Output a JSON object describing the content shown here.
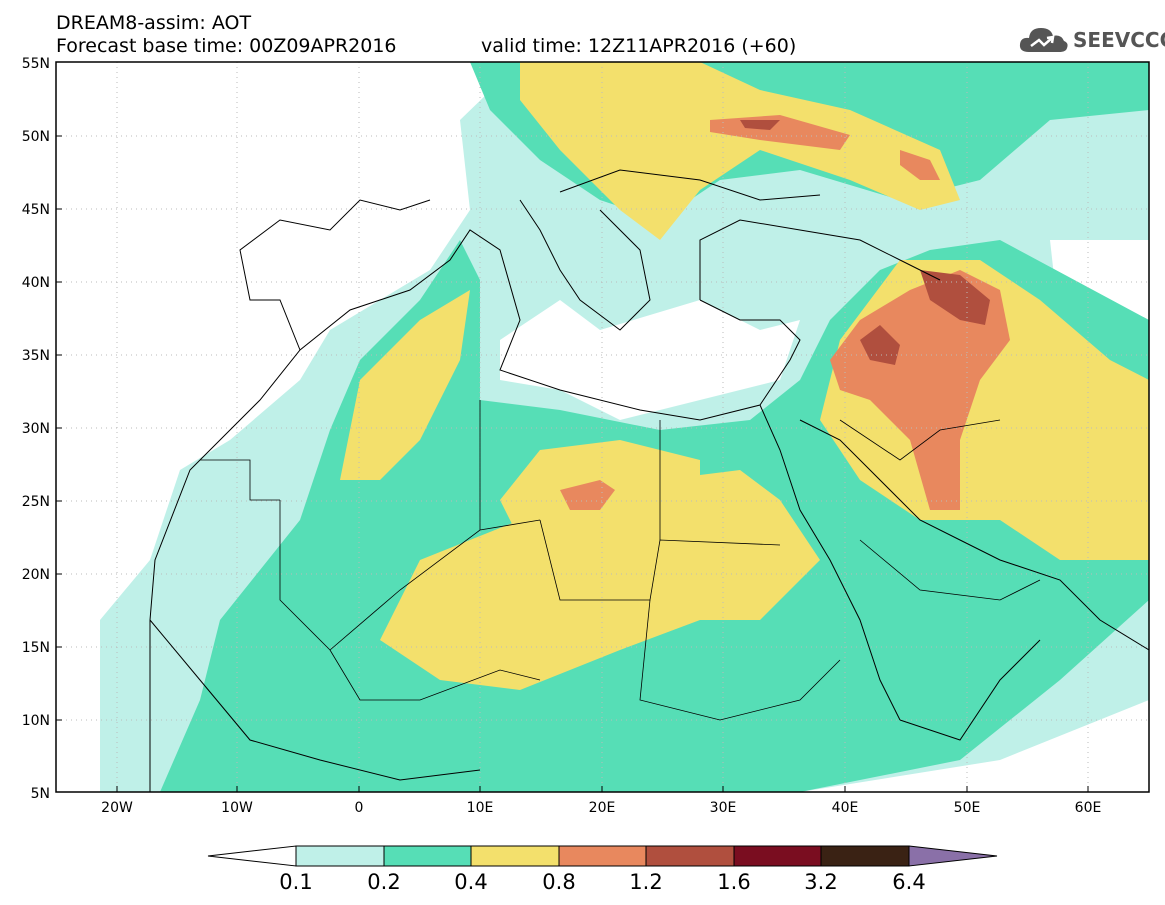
{
  "header": {
    "title": "DREAM8-assim: AOT",
    "base_time": "Forecast base time: 00Z09APR2016",
    "valid_time": "valid time: 12Z11APR2016 (+60)"
  },
  "logo": {
    "text": "SEEVCCC",
    "icon": "cloud-logo-icon"
  },
  "map": {
    "lat_labels": [
      "55N",
      "50N",
      "45N",
      "40N",
      "35N",
      "30N",
      "25N",
      "20N",
      "15N",
      "10N",
      "5N"
    ],
    "lon_labels": [
      "20W",
      "10W",
      "0",
      "10E",
      "20E",
      "30E",
      "40E",
      "50E",
      "60E"
    ],
    "grid": true,
    "extent": {
      "lon": [
        -25,
        65
      ],
      "lat": [
        5,
        55
      ]
    }
  },
  "colorbar": {
    "levels": [
      "0.1",
      "0.2",
      "0.4",
      "0.8",
      "1.2",
      "1.6",
      "3.2",
      "6.4"
    ],
    "colors": [
      "#ffffff",
      "#bff0e8",
      "#56deb6",
      "#f3e06c",
      "#e8885e",
      "#b04f3e",
      "#7a0d20",
      "#3a2214",
      "#8a70a8"
    ]
  }
}
